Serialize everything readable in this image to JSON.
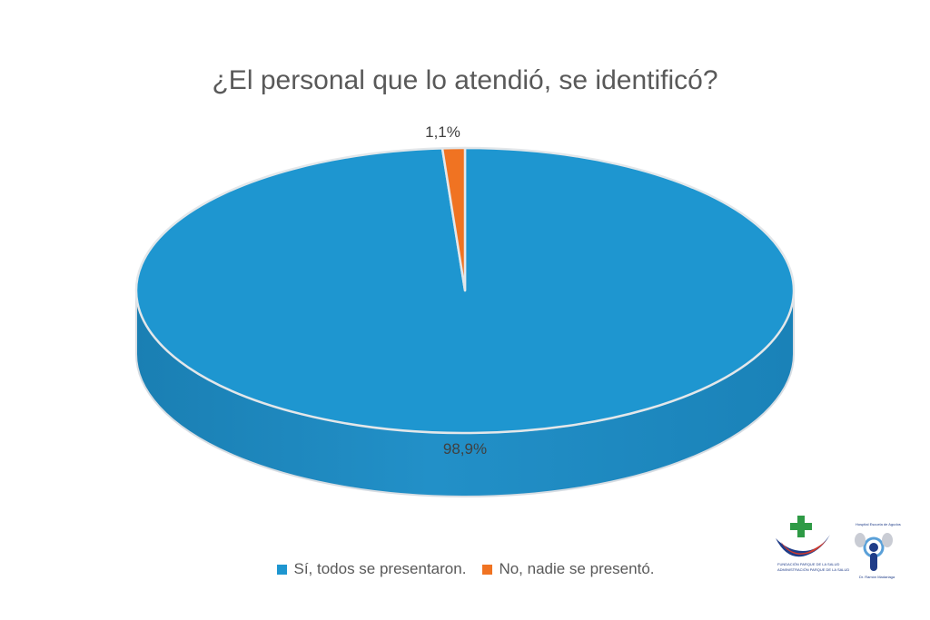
{
  "chart_data": {
    "type": "pie",
    "title": "¿El personal que lo atendió, se identificó?",
    "slices": [
      {
        "label": "Sí, todos se presentaron.",
        "value": 98.9,
        "data_label": "98,9%",
        "color": "#1E96D0"
      },
      {
        "label": "No, nadie se presentó.",
        "value": 1.1,
        "data_label": "1,1%",
        "color": "#F07322"
      }
    ],
    "style": "3d",
    "legend_position": "bottom"
  },
  "logos": {
    "left_logo_text": "FUNDACIÓN PARQUE DE LA SALUD",
    "left_logo_subtext": "ADMINISTRACIÓN PARQUE DE LA SALUD",
    "right_logo_text_top": "Hospital Escuela de Agudos",
    "right_logo_text_bottom": "Dr. Ramón Madariaga",
    "colors": {
      "cross": "#2e9a45",
      "blue": "#1f3c88",
      "red": "#d23a2d",
      "light_blue": "#5aa0d8"
    }
  }
}
